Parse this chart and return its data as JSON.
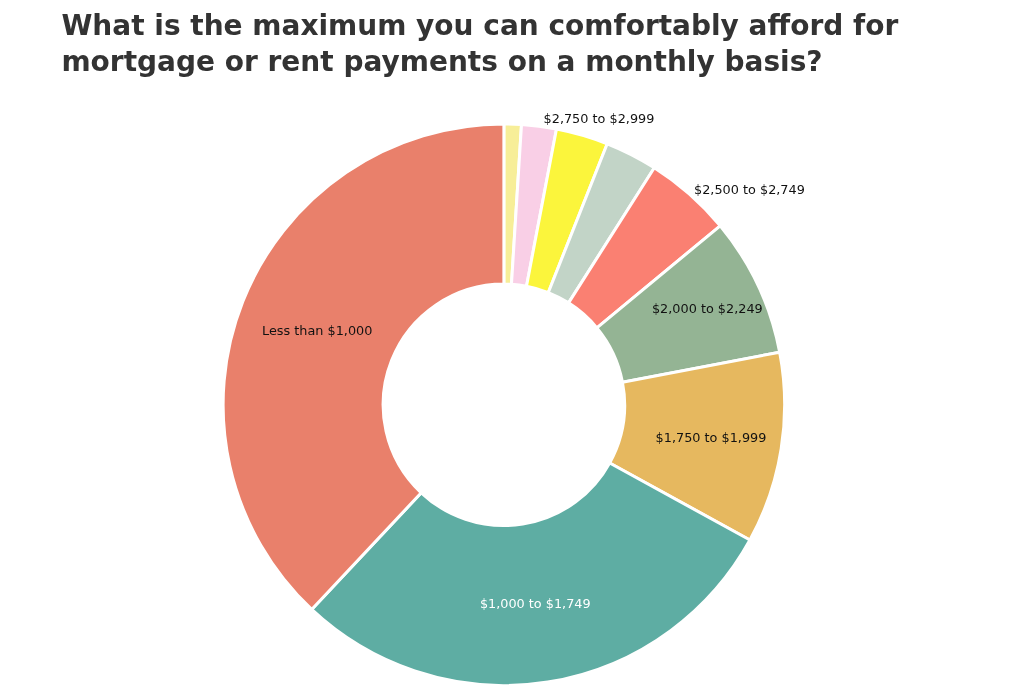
{
  "chart_data": {
    "type": "donut",
    "title": "What is the maximum you can comfortably afford for\nmortgage or rent payments on a monthly basis?",
    "categories": [
      null,
      "$2,750 to $2,999",
      null,
      null,
      "$2,500 to $2,749",
      "$2,000 to $2,249",
      "$1,750 to $1,999",
      "$1,000 to $1,749",
      "Less than $1,000"
    ],
    "values": [
      1,
      2,
      3,
      3,
      5,
      8,
      11,
      29,
      38
    ],
    "colors": [
      "#f7ee98",
      "#f9cfe6",
      "#fbf53c",
      "#c2d4c7",
      "#fa8072",
      "#94b494",
      "#e6b85f",
      "#5eada3",
      "#e9806b"
    ],
    "legend": false
  }
}
